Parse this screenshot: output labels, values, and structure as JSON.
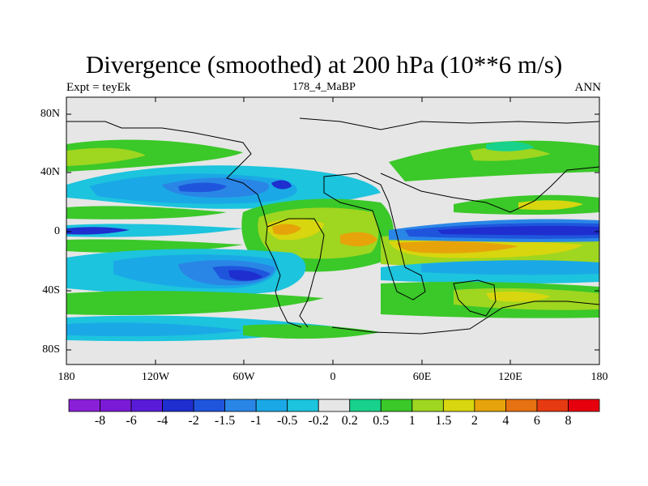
{
  "title": "Divergence (smoothed) at 200 hPa (10**6 m/s)",
  "subtitle": {
    "left": "Expt = teyEk",
    "center": "178_4_MaBP",
    "right": "ANN"
  },
  "axes": {
    "y_ticks": [
      "80N",
      "40N",
      "0",
      "40S",
      "80S"
    ],
    "x_ticks": [
      "180",
      "120W",
      "60W",
      "0",
      "60E",
      "120E",
      "180"
    ]
  },
  "colorbar": {
    "labels": [
      "-8",
      "-6",
      "-4",
      "-2",
      "-1.5",
      "-1",
      "-0.5",
      "-0.2",
      "0.2",
      "0.5",
      "1",
      "1.5",
      "2",
      "4",
      "6",
      "8"
    ],
    "colors": [
      "#8a1fd8",
      "#7a1ad6",
      "#5a1bd9",
      "#1e2ecf",
      "#1f55dd",
      "#2a86e6",
      "#1aa9e6",
      "#1cc4dd",
      "#e6e6e6",
      "#18d28c",
      "#3bc829",
      "#9fd620",
      "#d8d60e",
      "#e6a40a",
      "#e67212",
      "#e63a12",
      "#e6000e"
    ]
  },
  "colors": {
    "zero_band": "#e6e6e6",
    "frame": "#000000",
    "coast": "#000000"
  }
}
